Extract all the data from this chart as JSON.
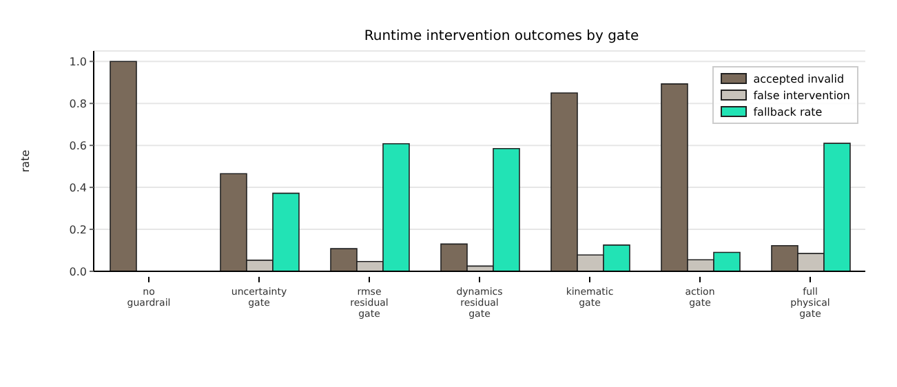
{
  "chart_data": {
    "type": "bar",
    "title": "Runtime intervention outcomes by gate",
    "ylabel": "rate",
    "categories": [
      "no\nguardrail",
      "uncertainty\ngate",
      "rmse\nresidual\ngate",
      "dynamics\nresidual\ngate",
      "kinematic\ngate",
      "action\ngate",
      "full\nphysical\ngate"
    ],
    "series": [
      {
        "name": "accepted invalid",
        "color": "#7a6a5a",
        "values": [
          1.0,
          0.465,
          0.108,
          0.13,
          0.85,
          0.893,
          0.122
        ]
      },
      {
        "name": "false intervention",
        "color": "#c8c3bb",
        "values": [
          0,
          0.053,
          0.047,
          0.025,
          0.078,
          0.055,
          0.085
        ]
      },
      {
        "name": "fallback rate",
        "color": "#22e3b5",
        "values": [
          0,
          0.372,
          0.608,
          0.585,
          0.125,
          0.09,
          0.61
        ]
      }
    ],
    "ylim": [
      0,
      1.05
    ],
    "yticks": [
      {
        "value": 0,
        "label": "0.0"
      },
      {
        "value": 0.2,
        "label": "0.2"
      },
      {
        "value": 0.4,
        "label": "0.4"
      },
      {
        "value": 0.6,
        "label": "0.6"
      },
      {
        "value": 0.8,
        "label": "0.8"
      },
      {
        "value": 1.0,
        "label": "1.0"
      }
    ],
    "grid": "y",
    "legend": "top right"
  }
}
